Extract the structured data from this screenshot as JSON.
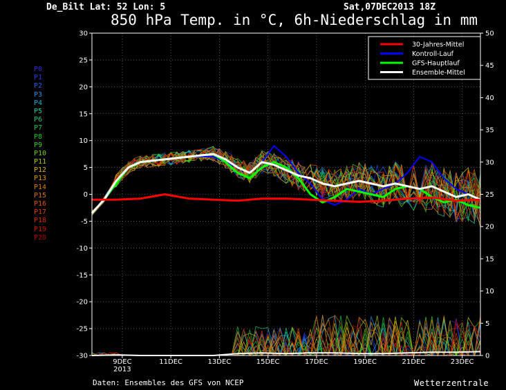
{
  "header": {
    "location": "De_Bilt  Lat: 52 Lon: 5",
    "datetime": "Sat,07DEC2013 18Z",
    "title": "850 hPa Temp. in °C, 6h-Niederschlag in mm"
  },
  "footer": {
    "source": "Daten: Ensembles des GFS von NCEP",
    "brand": "Wetterzentrale"
  },
  "members": [
    {
      "label": "P0",
      "color": "#3030d0"
    },
    {
      "label": "P1",
      "color": "#2040e0"
    },
    {
      "label": "P2",
      "color": "#2060e8"
    },
    {
      "label": "P3",
      "color": "#2090e0"
    },
    {
      "label": "P4",
      "color": "#20b0d8"
    },
    {
      "label": "P5",
      "color": "#20c8b0"
    },
    {
      "label": "P6",
      "color": "#20c880"
    },
    {
      "label": "P7",
      "color": "#20c840"
    },
    {
      "label": "P8",
      "color": "#20c820"
    },
    {
      "label": "P9",
      "color": "#40d020"
    },
    {
      "label": "P10",
      "color": "#70d010"
    },
    {
      "label": "P11",
      "color": "#c0c800"
    },
    {
      "label": "P12",
      "color": "#e0b000"
    },
    {
      "label": "P13",
      "color": "#e09800"
    },
    {
      "label": "P14",
      "color": "#e08000"
    },
    {
      "label": "P15",
      "color": "#e07000"
    },
    {
      "label": "P16",
      "color": "#e05a00"
    },
    {
      "label": "P17",
      "color": "#e04000"
    },
    {
      "label": "P18",
      "color": "#d82a00"
    },
    {
      "label": "P19",
      "color": "#c81800"
    },
    {
      "label": "P20",
      "color": "#b00000"
    }
  ],
  "chart_data": {
    "type": "line",
    "title": "850 hPa Temp. in °C, 6h-Niederschlag in mm",
    "x_unit": "hours after 07DEC2013 18Z",
    "xlim": [
      0,
      384
    ],
    "x_ticks": [
      {
        "label": "9DEC",
        "sub": "2013",
        "x": 30
      },
      {
        "label": "11DEC",
        "x": 78
      },
      {
        "label": "13DEC",
        "x": 126
      },
      {
        "label": "15DEC",
        "x": 174
      },
      {
        "label": "17DEC",
        "x": 222
      },
      {
        "label": "19DEC",
        "x": 270
      },
      {
        "label": "21DEC",
        "x": 318
      },
      {
        "label": "23DEC",
        "x": 366
      }
    ],
    "ylim_left": [
      -30,
      30
    ],
    "y_ticks_left": [
      30,
      25,
      20,
      15,
      10,
      5,
      0,
      -5,
      -10,
      -15,
      -20,
      -25,
      -30
    ],
    "ylim_right": [
      0,
      50
    ],
    "y_ticks_right": [
      50,
      45,
      40,
      35,
      30,
      25,
      20,
      15,
      10,
      5,
      0
    ],
    "legend_position": "top-right",
    "legend": [
      {
        "name": "30-Jahres-Mittel",
        "color": "#ff0000"
      },
      {
        "name": "Kontroll-Lauf",
        "color": "#0000ff"
      },
      {
        "name": "GFS-Hauptlauf",
        "color": "#00ff00"
      },
      {
        "name": "Ensemble-Mittel",
        "color": "#ffffff"
      }
    ],
    "series": [
      {
        "name": "30-Jahres-Mittel",
        "color": "#ff0000",
        "width": 3,
        "x": [
          0,
          24,
          48,
          72,
          96,
          120,
          144,
          168,
          192,
          216,
          240,
          264,
          288,
          312,
          336,
          360,
          384
        ],
        "y": [
          -1,
          -1,
          -0.8,
          0,
          -0.8,
          -1,
          -1.2,
          -0.8,
          -0.8,
          -1,
          -1.2,
          -1.4,
          -1.2,
          -0.8,
          -0.6,
          -1.2,
          -1
        ]
      },
      {
        "name": "Ensemble-Mittel",
        "color": "#ffffff",
        "width": 3,
        "x": [
          0,
          12,
          24,
          36,
          48,
          72,
          96,
          120,
          132,
          144,
          156,
          168,
          180,
          192,
          204,
          216,
          228,
          240,
          252,
          264,
          276,
          288,
          300,
          312,
          324,
          336,
          348,
          360,
          372,
          384
        ],
        "y": [
          -3.5,
          -1,
          2.5,
          5,
          6,
          6.5,
          7,
          7.5,
          6.5,
          5,
          4,
          6,
          5.5,
          4.5,
          3.5,
          3,
          2,
          1.5,
          2,
          2.5,
          2,
          1.5,
          2,
          1.5,
          1,
          1.5,
          0.5,
          -0.5,
          0,
          -1
        ]
      },
      {
        "name": "GFS-Hauptlauf",
        "color": "#00ff00",
        "width": 3,
        "x": [
          0,
          12,
          24,
          36,
          48,
          72,
          96,
          120,
          132,
          144,
          156,
          168,
          180,
          192,
          204,
          216,
          228,
          240,
          252,
          264,
          276,
          288,
          300,
          312,
          324,
          336,
          348,
          360,
          372,
          384
        ],
        "y": [
          -3.5,
          -1,
          2,
          5,
          6,
          6.5,
          7,
          7.5,
          6,
          4,
          3,
          5,
          6,
          5,
          3,
          0,
          -1.5,
          -0.5,
          1,
          0.5,
          0,
          -0.5,
          1,
          1.5,
          1,
          -0.5,
          -1.5,
          -1,
          -2,
          -2.5
        ]
      },
      {
        "name": "Kontroll-Lauf",
        "color": "#0000ff",
        "width": 2,
        "x": [
          0,
          12,
          24,
          36,
          48,
          72,
          96,
          120,
          132,
          144,
          156,
          168,
          180,
          192,
          204,
          216,
          228,
          240,
          252,
          264,
          276,
          288,
          300,
          312,
          324,
          336,
          348,
          360,
          372,
          384
        ],
        "y": [
          -3.5,
          -1,
          2.5,
          5,
          6,
          6.5,
          7,
          7,
          6,
          5,
          4,
          6,
          9,
          7,
          4,
          2,
          -1,
          -2,
          -1,
          1,
          0,
          1,
          2,
          4,
          7,
          6,
          3,
          1,
          0,
          -1
        ]
      }
    ],
    "precip_mean": {
      "name": "Ensemble-Mittel (Niederschlag)",
      "color": "#ffffff",
      "x": [
        0,
        24,
        48,
        72,
        96,
        120,
        144,
        168,
        192,
        216,
        240,
        264,
        288,
        312,
        336,
        360,
        384
      ],
      "y": [
        0,
        0.1,
        0,
        0,
        0,
        0,
        0.3,
        0.4,
        0.3,
        0.4,
        0.4,
        0.3,
        0.3,
        0.4,
        0.5,
        0.5,
        0.6
      ]
    }
  }
}
